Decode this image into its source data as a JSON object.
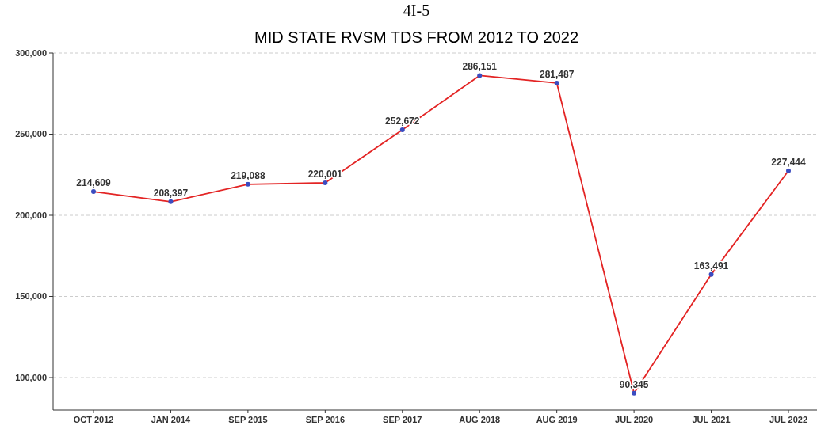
{
  "chart_data": {
    "type": "line",
    "title": "MID STATE RVSM TDS FROM 2012 TO 2022",
    "annotations": [
      "4I-5"
    ],
    "categories": [
      "OCT 2012",
      "JAN 2014",
      "SEP 2015",
      "SEP 2016",
      "SEP 2017",
      "AUG 2018",
      "AUG 2019",
      "JUL 2020",
      "JUL 2021",
      "JUL 2022"
    ],
    "series": [
      {
        "color": "#e32424",
        "values": [
          214609,
          208397,
          219088,
          220001,
          252672,
          286151,
          281487,
          90345,
          163491,
          227444
        ],
        "value_labels": [
          "214,609",
          "208,397",
          "219,088",
          "220,001",
          "252,672",
          "286,151",
          "281,487",
          "90,345",
          "163,491",
          "227,444"
        ]
      }
    ],
    "ylim": [
      80000,
      300000
    ],
    "yticks": [
      {
        "value": 100000,
        "label": "100,000"
      },
      {
        "value": 150000,
        "label": "150,000"
      },
      {
        "value": 200000,
        "label": "200,000"
      },
      {
        "value": 250000,
        "label": "250,000"
      },
      {
        "value": 300000,
        "label": "300,000"
      }
    ],
    "grid": "y",
    "marker": "circle",
    "line_style": "solid"
  }
}
